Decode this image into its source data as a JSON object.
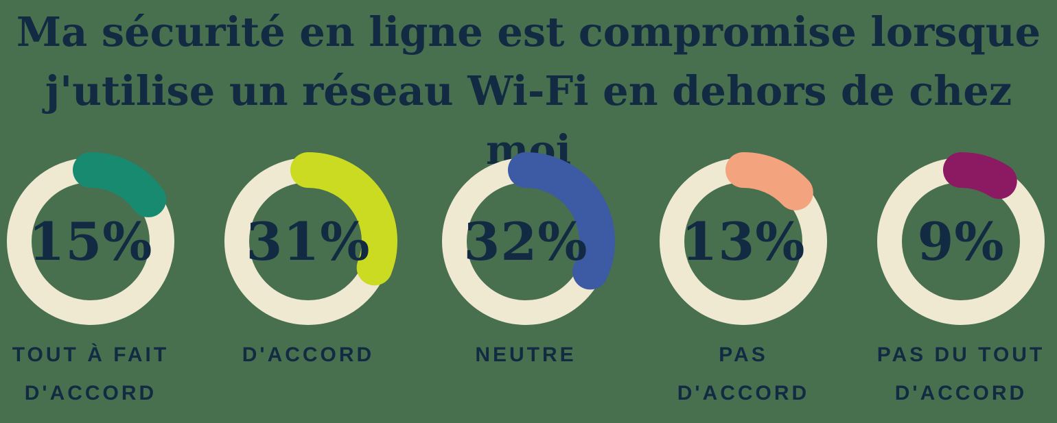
{
  "title": {
    "line1": "Ma sécurité en ligne est compromise lorsque",
    "line2": "j'utilise un réseau Wi-Fi en dehors de chez moi"
  },
  "colors": {
    "background": "#48704F",
    "text_navy": "#122B42",
    "donut_track": "#F0E9D2"
  },
  "chart_data": {
    "type": "pie",
    "subtype": "donut-small-multiples",
    "title": "Ma sécurité en ligne est compromise lorsque j'utilise un réseau Wi-Fi en dehors de chez moi",
    "units": "%",
    "legend_position": "below-each-donut",
    "track_color": "#F0E9D2",
    "arc_start": "top",
    "arc_direction": "clockwise",
    "categories": [
      "TOUT À FAIT D'ACCORD",
      "D'ACCORD",
      "NEUTRE",
      "PAS D'ACCORD",
      "PAS DU TOUT D'ACCORD"
    ],
    "values": [
      15,
      31,
      32,
      13,
      9
    ],
    "items": [
      {
        "label": "TOUT À FAIT D'ACCORD",
        "label_lines": [
          "TOUT À FAIT",
          "D'ACCORD"
        ],
        "value": 15,
        "display": "15%",
        "color": "#178A6F"
      },
      {
        "label": "D'ACCORD",
        "label_lines": [
          "D'ACCORD"
        ],
        "value": 31,
        "display": "31%",
        "color": "#CBDB21"
      },
      {
        "label": "NEUTRE",
        "label_lines": [
          "NEUTRE"
        ],
        "value": 32,
        "display": "32%",
        "color": "#3D5AA5"
      },
      {
        "label": "PAS D'ACCORD",
        "label_lines": [
          "PAS",
          "D'ACCORD"
        ],
        "value": 13,
        "display": "13%",
        "color": "#F3A47F"
      },
      {
        "label": "PAS DU TOUT D'ACCORD",
        "label_lines": [
          "PAS DU TOUT",
          "D'ACCORD"
        ],
        "value": 9,
        "display": "9%",
        "color": "#8C1A63"
      }
    ]
  }
}
